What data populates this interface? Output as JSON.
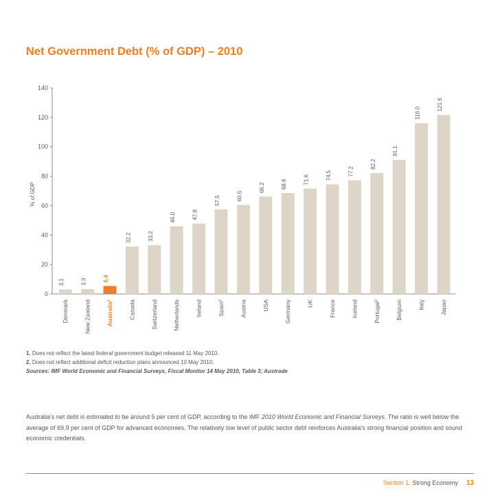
{
  "chart_data": {
    "type": "bar",
    "title": "Net Government Debt (% of GDP) – 2010",
    "xlabel": "",
    "ylabel": "% of GDP",
    "ylim": [
      0,
      140
    ],
    "yticks": [
      0,
      20,
      40,
      60,
      80,
      100,
      120,
      140
    ],
    "categories": [
      "Denmark",
      "New Zealand",
      "Australia",
      "Canada",
      "Switzerland",
      "Netherlands",
      "Ireland",
      "Spain",
      "Austria",
      "USA",
      "Germany",
      "UK",
      "France",
      "Iceland",
      "Portugal",
      "Belgium",
      "Italy",
      "Japan"
    ],
    "category_superscripts": [
      "",
      "",
      "1",
      "",
      "",
      "",
      "",
      "2",
      "",
      "",
      "",
      "",
      "",
      "",
      "2",
      "",
      "",
      ""
    ],
    "values": [
      3.1,
      3.3,
      5.4,
      32.2,
      33.2,
      46.0,
      47.8,
      57.5,
      60.5,
      66.2,
      68.6,
      71.6,
      74.5,
      77.2,
      82.2,
      91.1,
      116.0,
      121.6
    ],
    "value_labels": [
      "3.1",
      "3.3",
      "5.4",
      "32.2",
      "33.2",
      "46.0",
      "47.8",
      "57.5",
      "60.5",
      "66.2",
      "68.6",
      "71.6",
      "74.5",
      "77.2",
      "82.2",
      "91.1",
      "116.0",
      "121.6"
    ],
    "highlight": "Australia",
    "colors": {
      "bar": "#ddd5c8",
      "highlight": "#f07e1e",
      "axis": "#888888",
      "text": "#5a5a5a"
    }
  },
  "notes": {
    "n1_num": "1.",
    "n1_text": " Does not reflect the latest federal government budget released 11 May 2010.",
    "n2_num": "2.",
    "n2_text": " Does not reflect additional deficit reduction plans announced 10 May 2010.",
    "sources": "Sources: IMF World Economic and Financial Surveys, Fiscal Monitor 14 May 2010, Table 3; Austrade"
  },
  "body": {
    "p1": "Australia’s net debt is estimated to be around 5 per cent of GDP, according to the IMF ",
    "p1_italic": "2010 World Economic and Financial Surveys",
    "p2": ". The ratio is well below the average of 69.9 per cent of GDP for advanced economies. The relatively low level of public sector debt reinforces Australia’s strong financial position and sound economic credentials."
  },
  "footer": {
    "section_prefix": "Section 1.",
    "section_name": " Strong Economy",
    "page_number": "13"
  }
}
